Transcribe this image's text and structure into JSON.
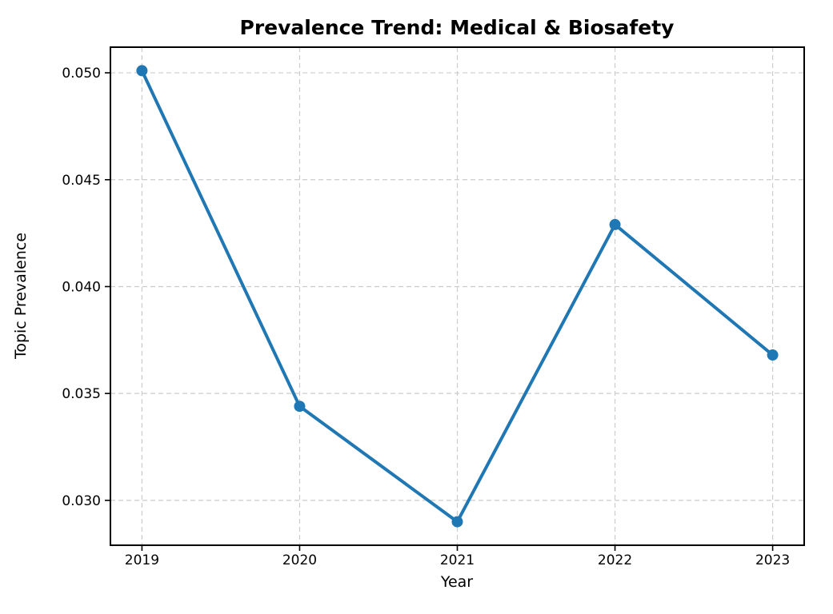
{
  "figure": {
    "background_color": "#ffffff",
    "text_color": "#000000"
  },
  "chart_data": {
    "type": "line",
    "title": "Prevalence Trend: Medical & Biosafety",
    "xlabel": "Year",
    "ylabel": "Topic Prevalence",
    "x": [
      2019,
      2020,
      2021,
      2022,
      2023
    ],
    "values": [
      0.0501,
      0.0344,
      0.029,
      0.0429,
      0.0368
    ],
    "xtick_labels": [
      "2019",
      "2020",
      "2021",
      "2022",
      "2023"
    ],
    "yticks": [
      0.03,
      0.035,
      0.04,
      0.045,
      0.05
    ],
    "ytick_labels": [
      "0.030",
      "0.035",
      "0.040",
      "0.045",
      "0.050"
    ],
    "xlim": [
      2018.8,
      2023.2
    ],
    "ylim": [
      0.0279,
      0.0512
    ],
    "grid": true,
    "grid_linestyle": "dashed",
    "legend_position": "none",
    "line_color": "#1f77b4",
    "marker": "circle",
    "grid_color": "#cccccc",
    "spine_color": "#000000"
  }
}
